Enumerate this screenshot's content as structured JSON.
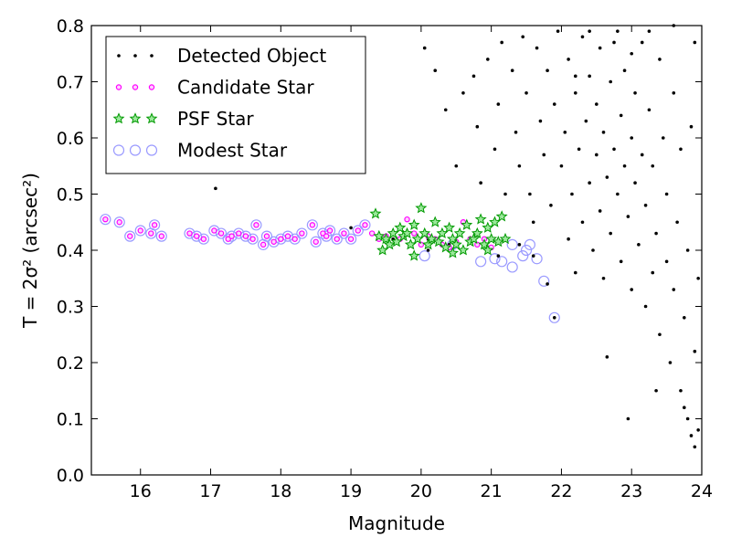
{
  "chart_data": {
    "type": "scatter",
    "title": "",
    "xlabel": "Magnitude",
    "ylabel": "T = 2σ² (arcsec²)",
    "xlim": [
      15.3,
      24
    ],
    "ylim": [
      0,
      0.8
    ],
    "xticks": [
      "16",
      "17",
      "18",
      "19",
      "20",
      "21",
      "22",
      "23",
      "24"
    ],
    "yticks": [
      "0.0",
      "0.1",
      "0.2",
      "0.3",
      "0.4",
      "0.5",
      "0.6",
      "0.7",
      "0.8"
    ],
    "grid": false,
    "legend_position": "top-left",
    "legend": [
      {
        "label": "Detected Object",
        "marker": "dot",
        "color": "#000000"
      },
      {
        "label": "Candidate Star",
        "marker": "circle",
        "color": "#ff00ff"
      },
      {
        "label": "PSF Star",
        "marker": "star",
        "color": "#00aa00"
      },
      {
        "label": "Modest Star",
        "marker": "open-circle",
        "color": "#9999ff"
      }
    ],
    "series": [
      {
        "name": "Detected Object",
        "points": [
          [
            17.07,
            0.51
          ],
          [
            19.0,
            0.44
          ],
          [
            19.3,
            0.43
          ],
          [
            19.6,
            0.42
          ],
          [
            19.9,
            0.43
          ],
          [
            20.1,
            0.42
          ],
          [
            20.4,
            0.41
          ],
          [
            20.7,
            0.42
          ],
          [
            20.9,
            0.41
          ],
          [
            21.2,
            0.42
          ],
          [
            21.4,
            0.41
          ],
          [
            21.6,
            0.39
          ],
          [
            21.8,
            0.34
          ],
          [
            21.9,
            0.28
          ],
          [
            20.1,
            0.4
          ],
          [
            21.1,
            0.39
          ],
          [
            20.05,
            0.76
          ],
          [
            20.2,
            0.72
          ],
          [
            20.35,
            0.65
          ],
          [
            20.5,
            0.55
          ],
          [
            20.6,
            0.68
          ],
          [
            20.75,
            0.71
          ],
          [
            20.8,
            0.62
          ],
          [
            20.85,
            0.52
          ],
          [
            20.95,
            0.74
          ],
          [
            21.05,
            0.58
          ],
          [
            21.1,
            0.66
          ],
          [
            21.15,
            0.77
          ],
          [
            21.2,
            0.5
          ],
          [
            21.3,
            0.72
          ],
          [
            21.35,
            0.61
          ],
          [
            21.4,
            0.55
          ],
          [
            21.45,
            0.78
          ],
          [
            21.5,
            0.68
          ],
          [
            21.55,
            0.5
          ],
          [
            21.6,
            0.45
          ],
          [
            21.65,
            0.76
          ],
          [
            21.7,
            0.63
          ],
          [
            21.75,
            0.57
          ],
          [
            21.8,
            0.72
          ],
          [
            21.85,
            0.48
          ],
          [
            21.9,
            0.66
          ],
          [
            21.95,
            0.79
          ],
          [
            22.0,
            0.55
          ],
          [
            22.05,
            0.61
          ],
          [
            22.1,
            0.74
          ],
          [
            22.1,
            0.42
          ],
          [
            22.15,
            0.5
          ],
          [
            22.2,
            0.68
          ],
          [
            22.2,
            0.36
          ],
          [
            22.25,
            0.58
          ],
          [
            22.3,
            0.78
          ],
          [
            22.3,
            0.45
          ],
          [
            22.35,
            0.63
          ],
          [
            22.4,
            0.52
          ],
          [
            22.4,
            0.71
          ],
          [
            22.45,
            0.4
          ],
          [
            22.5,
            0.66
          ],
          [
            22.5,
            0.57
          ],
          [
            22.55,
            0.76
          ],
          [
            22.55,
            0.47
          ],
          [
            22.6,
            0.35
          ],
          [
            22.6,
            0.61
          ],
          [
            22.65,
            0.53
          ],
          [
            22.7,
            0.7
          ],
          [
            22.7,
            0.43
          ],
          [
            22.75,
            0.58
          ],
          [
            22.8,
            0.79
          ],
          [
            22.8,
            0.5
          ],
          [
            22.85,
            0.64
          ],
          [
            22.85,
            0.38
          ],
          [
            22.9,
            0.55
          ],
          [
            22.9,
            0.72
          ],
          [
            22.95,
            0.46
          ],
          [
            23.0,
            0.6
          ],
          [
            23.0,
            0.33
          ],
          [
            23.05,
            0.68
          ],
          [
            23.05,
            0.52
          ],
          [
            23.1,
            0.41
          ],
          [
            23.15,
            0.77
          ],
          [
            23.15,
            0.57
          ],
          [
            23.2,
            0.48
          ],
          [
            23.2,
            0.3
          ],
          [
            23.25,
            0.65
          ],
          [
            23.3,
            0.36
          ],
          [
            23.3,
            0.55
          ],
          [
            23.35,
            0.43
          ],
          [
            23.4,
            0.74
          ],
          [
            23.4,
            0.25
          ],
          [
            23.45,
            0.6
          ],
          [
            23.5,
            0.38
          ],
          [
            23.5,
            0.5
          ],
          [
            23.55,
            0.2
          ],
          [
            23.6,
            0.68
          ],
          [
            23.6,
            0.33
          ],
          [
            23.65,
            0.45
          ],
          [
            23.7,
            0.15
          ],
          [
            23.7,
            0.58
          ],
          [
            23.75,
            0.28
          ],
          [
            23.8,
            0.1
          ],
          [
            23.8,
            0.4
          ],
          [
            23.85,
            0.62
          ],
          [
            23.9,
            0.05
          ],
          [
            23.9,
            0.22
          ],
          [
            23.95,
            0.35
          ],
          [
            23.95,
            0.08
          ],
          [
            22.65,
            0.21
          ],
          [
            22.95,
            0.1
          ],
          [
            23.35,
            0.15
          ],
          [
            23.75,
            0.12
          ],
          [
            23.85,
            0.07
          ],
          [
            22.2,
            0.71
          ],
          [
            22.4,
            0.79
          ],
          [
            22.75,
            0.77
          ],
          [
            23.0,
            0.75
          ],
          [
            23.25,
            0.79
          ],
          [
            23.6,
            0.8
          ],
          [
            23.9,
            0.77
          ]
        ]
      },
      {
        "name": "Candidate Star",
        "points": [
          [
            15.5,
            0.455
          ],
          [
            15.7,
            0.45
          ],
          [
            15.85,
            0.425
          ],
          [
            16.0,
            0.435
          ],
          [
            16.15,
            0.43
          ],
          [
            16.2,
            0.445
          ],
          [
            16.3,
            0.425
          ],
          [
            16.7,
            0.43
          ],
          [
            16.8,
            0.425
          ],
          [
            16.9,
            0.42
          ],
          [
            17.05,
            0.435
          ],
          [
            17.15,
            0.43
          ],
          [
            17.25,
            0.42
          ],
          [
            17.3,
            0.425
          ],
          [
            17.4,
            0.43
          ],
          [
            17.5,
            0.425
          ],
          [
            17.6,
            0.42
          ],
          [
            17.65,
            0.445
          ],
          [
            17.75,
            0.41
          ],
          [
            17.8,
            0.425
          ],
          [
            17.9,
            0.415
          ],
          [
            18.0,
            0.42
          ],
          [
            18.1,
            0.425
          ],
          [
            18.2,
            0.42
          ],
          [
            18.3,
            0.43
          ],
          [
            18.45,
            0.445
          ],
          [
            18.5,
            0.415
          ],
          [
            18.6,
            0.43
          ],
          [
            18.65,
            0.425
          ],
          [
            18.7,
            0.435
          ],
          [
            18.8,
            0.42
          ],
          [
            18.9,
            0.43
          ],
          [
            19.0,
            0.42
          ],
          [
            19.1,
            0.435
          ],
          [
            19.2,
            0.445
          ],
          [
            19.3,
            0.43
          ],
          [
            19.4,
            0.42
          ],
          [
            19.5,
            0.425
          ],
          [
            19.6,
            0.43
          ],
          [
            19.7,
            0.42
          ],
          [
            19.8,
            0.455
          ],
          [
            19.9,
            0.43
          ],
          [
            20.0,
            0.41
          ],
          [
            20.1,
            0.425
          ],
          [
            20.2,
            0.42
          ],
          [
            20.3,
            0.41
          ],
          [
            20.4,
            0.405
          ],
          [
            20.5,
            0.415
          ],
          [
            20.6,
            0.45
          ],
          [
            20.7,
            0.42
          ],
          [
            20.8,
            0.41
          ],
          [
            20.9,
            0.42
          ],
          [
            21.0,
            0.405
          ],
          [
            21.1,
            0.415
          ],
          [
            21.2,
            0.42
          ]
        ]
      },
      {
        "name": "PSF Star",
        "points": [
          [
            19.35,
            0.465
          ],
          [
            19.4,
            0.425
          ],
          [
            19.5,
            0.42
          ],
          [
            19.55,
            0.41
          ],
          [
            19.6,
            0.43
          ],
          [
            19.65,
            0.415
          ],
          [
            19.7,
            0.44
          ],
          [
            19.75,
            0.425
          ],
          [
            19.8,
            0.43
          ],
          [
            19.85,
            0.41
          ],
          [
            19.9,
            0.445
          ],
          [
            19.95,
            0.42
          ],
          [
            20.0,
            0.475
          ],
          [
            20.05,
            0.43
          ],
          [
            20.1,
            0.41
          ],
          [
            20.15,
            0.42
          ],
          [
            20.2,
            0.45
          ],
          [
            20.25,
            0.415
          ],
          [
            20.3,
            0.43
          ],
          [
            20.35,
            0.405
          ],
          [
            20.4,
            0.44
          ],
          [
            20.45,
            0.42
          ],
          [
            20.5,
            0.41
          ],
          [
            20.55,
            0.43
          ],
          [
            20.6,
            0.4
          ],
          [
            20.65,
            0.445
          ],
          [
            20.7,
            0.415
          ],
          [
            20.75,
            0.42
          ],
          [
            20.8,
            0.43
          ],
          [
            20.85,
            0.455
          ],
          [
            20.9,
            0.41
          ],
          [
            20.95,
            0.44
          ],
          [
            21.0,
            0.42
          ],
          [
            21.05,
            0.45
          ],
          [
            21.1,
            0.415
          ],
          [
            21.15,
            0.46
          ],
          [
            21.2,
            0.42
          ],
          [
            19.45,
            0.4
          ],
          [
            19.9,
            0.39
          ],
          [
            20.45,
            0.395
          ],
          [
            20.95,
            0.4
          ]
        ]
      },
      {
        "name": "Modest Star",
        "points": [
          [
            15.5,
            0.455
          ],
          [
            15.7,
            0.45
          ],
          [
            15.85,
            0.425
          ],
          [
            16.0,
            0.435
          ],
          [
            16.15,
            0.43
          ],
          [
            16.2,
            0.445
          ],
          [
            16.3,
            0.425
          ],
          [
            16.7,
            0.43
          ],
          [
            16.8,
            0.425
          ],
          [
            16.9,
            0.42
          ],
          [
            17.05,
            0.435
          ],
          [
            17.15,
            0.43
          ],
          [
            17.25,
            0.42
          ],
          [
            17.3,
            0.425
          ],
          [
            17.4,
            0.43
          ],
          [
            17.5,
            0.425
          ],
          [
            17.6,
            0.42
          ],
          [
            17.65,
            0.445
          ],
          [
            17.75,
            0.41
          ],
          [
            17.8,
            0.425
          ],
          [
            17.9,
            0.415
          ],
          [
            18.0,
            0.42
          ],
          [
            18.1,
            0.425
          ],
          [
            18.2,
            0.42
          ],
          [
            18.3,
            0.43
          ],
          [
            18.45,
            0.445
          ],
          [
            18.5,
            0.415
          ],
          [
            18.6,
            0.43
          ],
          [
            18.65,
            0.425
          ],
          [
            18.7,
            0.435
          ],
          [
            18.8,
            0.42
          ],
          [
            18.9,
            0.43
          ],
          [
            19.0,
            0.42
          ],
          [
            19.1,
            0.435
          ],
          [
            19.2,
            0.445
          ],
          [
            20.05,
            0.39
          ],
          [
            20.45,
            0.41
          ],
          [
            20.85,
            0.38
          ],
          [
            21.05,
            0.385
          ],
          [
            21.15,
            0.38
          ],
          [
            21.3,
            0.37
          ],
          [
            21.45,
            0.39
          ],
          [
            21.55,
            0.41
          ],
          [
            21.65,
            0.385
          ],
          [
            21.75,
            0.345
          ],
          [
            21.9,
            0.28
          ],
          [
            21.3,
            0.41
          ],
          [
            21.5,
            0.4
          ]
        ]
      }
    ]
  }
}
